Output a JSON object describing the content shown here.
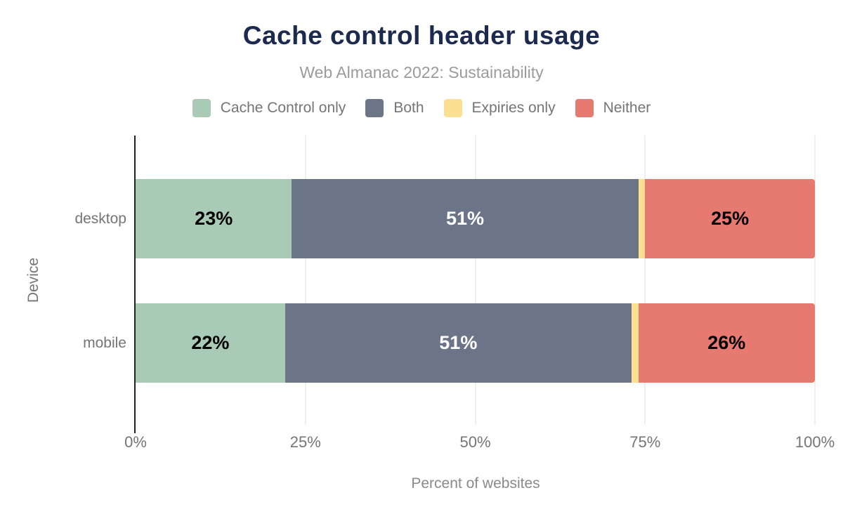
{
  "header": {
    "title": "Cache control header usage",
    "subtitle": "Web Almanac 2022: Sustainability"
  },
  "chart_data": {
    "type": "bar",
    "variant": "horizontal-stacked",
    "title": "Cache control header usage",
    "subtitle": "Web Almanac 2022: Sustainability",
    "categories": [
      "desktop",
      "mobile"
    ],
    "series": [
      {
        "name": "Cache Control only",
        "color": "#a9cbb6",
        "values": [
          23,
          22
        ],
        "data_labels": [
          "23%",
          "22%"
        ],
        "label_color": "#000000"
      },
      {
        "name": "Both",
        "color": "#6b7587",
        "values": [
          51,
          51
        ],
        "data_labels": [
          "51%",
          "51%"
        ],
        "label_color": "#ffffff"
      },
      {
        "name": "Expiries only",
        "color": "#fce092",
        "values": [
          1,
          1
        ],
        "data_labels": [
          "",
          ""
        ],
        "label_color": "#000000"
      },
      {
        "name": "Neither",
        "color": "#e67a70",
        "values": [
          25,
          26
        ],
        "data_labels": [
          "25%",
          "26%"
        ],
        "label_color": "#000000"
      }
    ],
    "xlabel": "Percent of websites",
    "ylabel": "Device",
    "xlim": [
      0,
      100
    ],
    "x_ticks": [
      0,
      25,
      50,
      75,
      100
    ],
    "x_tick_labels": [
      "0%",
      "25%",
      "50%",
      "75%",
      "100%"
    ],
    "grid": "vertical",
    "legend_position": "top",
    "axis_colors": {
      "axis_line": "#212121",
      "gridline": "#efefef",
      "tick_text": "#757575"
    }
  }
}
